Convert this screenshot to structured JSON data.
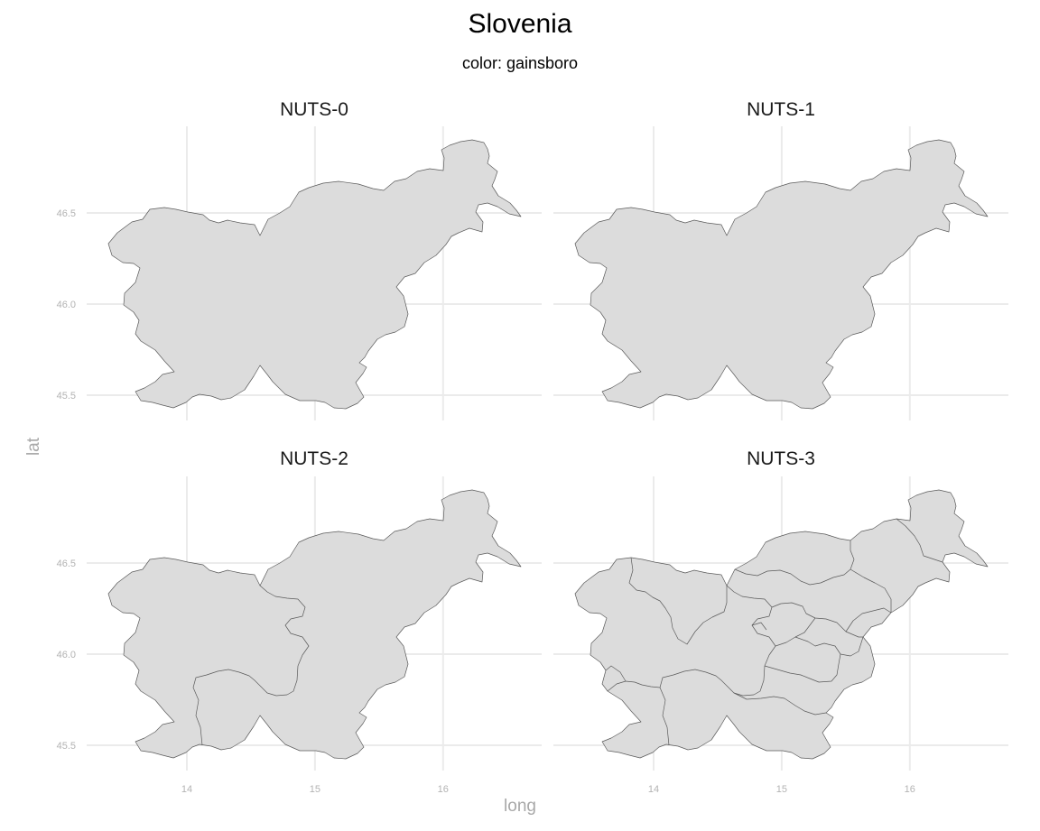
{
  "title": "Slovenia",
  "subtitle": "color: gainsboro",
  "axes": {
    "xlabel": "long",
    "ylabel": "lat",
    "x_ticks": [
      "14",
      "15",
      "16"
    ],
    "y_ticks": [
      "45.5",
      "46.0",
      "46.5"
    ],
    "x_tick_values": [
      14,
      15,
      16
    ],
    "y_tick_values": [
      45.5,
      46.0,
      46.5
    ],
    "xlim": [
      13.3,
      16.8
    ],
    "ylim": [
      45.36,
      46.95
    ]
  },
  "fill_color": "#dcdcdc",
  "panels": [
    {
      "label": "NUTS-0",
      "level": 0
    },
    {
      "label": "NUTS-1",
      "level": 1
    },
    {
      "label": "NUTS-2",
      "level": 2
    },
    {
      "label": "NUTS-3",
      "level": 3
    }
  ]
}
